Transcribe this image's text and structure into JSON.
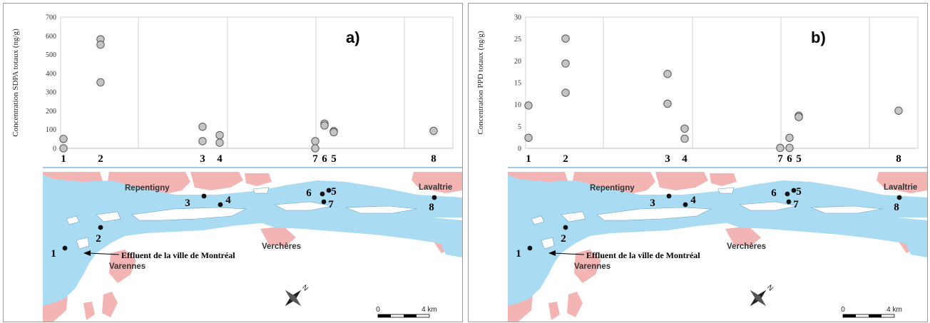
{
  "chart_data": [
    {
      "type": "scatter",
      "panel_label": "a)",
      "ylabel": "Concentration SDPA totaux (ng/g)",
      "ylim": [
        0,
        700
      ],
      "yticks": [
        0,
        100,
        200,
        300,
        400,
        500,
        600,
        700
      ],
      "grid": "vertical",
      "points": [
        {
          "x": 1,
          "y": 50
        },
        {
          "x": 1,
          "y": 0
        },
        {
          "x": 2,
          "y": 582
        },
        {
          "x": 2,
          "y": 553
        },
        {
          "x": 2,
          "y": 352
        },
        {
          "x": 3,
          "y": 115
        },
        {
          "x": 3,
          "y": 38
        },
        {
          "x": 4,
          "y": 70
        },
        {
          "x": 4,
          "y": 30
        },
        {
          "x": 7,
          "y": 38
        },
        {
          "x": 7,
          "y": 0
        },
        {
          "x": 6,
          "y": 132
        },
        {
          "x": 6,
          "y": 122
        },
        {
          "x": 5,
          "y": 88
        },
        {
          "x": 5,
          "y": 82
        },
        {
          "x": 8,
          "y": 93
        }
      ]
    },
    {
      "type": "scatter",
      "panel_label": "b)",
      "ylabel": "Concentration PPD totaux (ng/g)",
      "ylim": [
        0,
        30
      ],
      "yticks": [
        0,
        5,
        10,
        15,
        20,
        25,
        30
      ],
      "grid": "vertical",
      "points": [
        {
          "x": 1,
          "y": 9.8
        },
        {
          "x": 1,
          "y": 2.4
        },
        {
          "x": 2,
          "y": 25.1
        },
        {
          "x": 2,
          "y": 19.4
        },
        {
          "x": 2,
          "y": 12.7
        },
        {
          "x": 3,
          "y": 17.0
        },
        {
          "x": 3,
          "y": 10.2
        },
        {
          "x": 4,
          "y": 4.5
        },
        {
          "x": 4,
          "y": 2.2
        },
        {
          "x": 7,
          "y": 0.1
        },
        {
          "x": 6,
          "y": 2.4
        },
        {
          "x": 6,
          "y": 0.1
        },
        {
          "x": 5,
          "y": 7.3
        },
        {
          "x": 5,
          "y": 7.0
        },
        {
          "x": 8,
          "y": 8.6
        }
      ]
    }
  ],
  "site_labels_order": [
    "1",
    "2",
    "3",
    "4",
    "7",
    "6",
    "5",
    "8"
  ],
  "map": {
    "towns": [
      "Repentigny",
      "Lavaltrie",
      "Verchères",
      "Varennes"
    ],
    "effluent_label": "Effluent de la ville de Montréal",
    "compass_letter": "N",
    "scale_labels": [
      "0",
      "4 km"
    ],
    "sites": [
      "1",
      "2",
      "3",
      "4",
      "5",
      "6",
      "7",
      "8"
    ]
  },
  "colors": {
    "water": "#a9dcf2",
    "urban": "#f3b4b4",
    "marker_fill": "#c4c4c4",
    "marker_stroke": "#555555",
    "grid": "#d0d0d0"
  }
}
